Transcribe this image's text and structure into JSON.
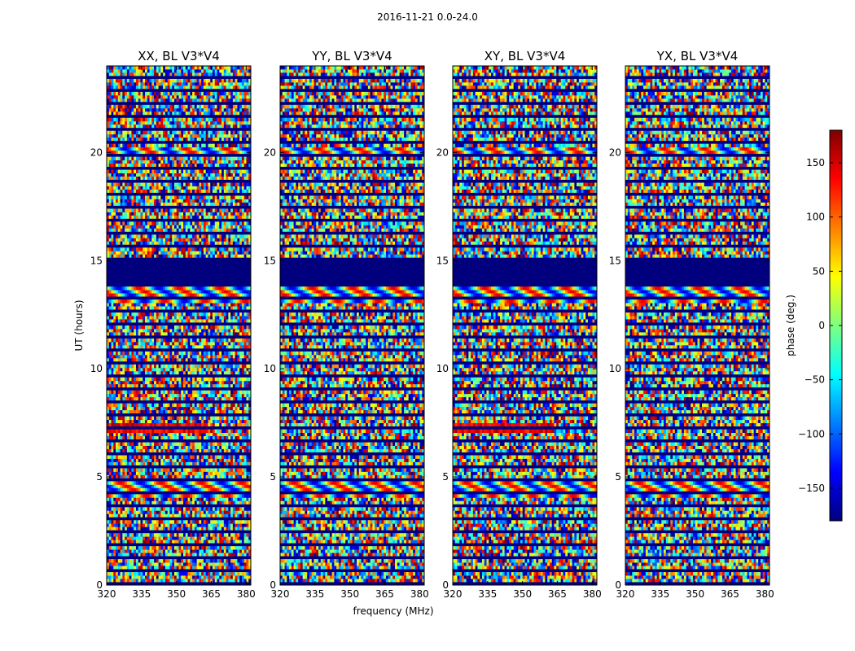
{
  "suptitle": "2016-11-21 0.0-24.0",
  "chart_data": {
    "type": "heatmap",
    "title": "2016-11-21 0.0-24.0",
    "xlabel": "frequency (MHz)",
    "ylabel": "UT (hours)",
    "xlim": [
      320,
      382
    ],
    "ylim": [
      0,
      24
    ],
    "xticks": [
      320,
      335,
      350,
      365,
      380
    ],
    "yticks": [
      0,
      5,
      10,
      15,
      20
    ],
    "colorbar": {
      "label": "phase (deg.)",
      "range": [
        -180,
        180
      ],
      "ticks": [
        150,
        100,
        50,
        0,
        -50,
        -100,
        -150
      ],
      "tick_labels": [
        "150",
        "100",
        "50",
        "0",
        "−50",
        "−100",
        "−150"
      ],
      "colormap": "jet",
      "colors": [
        "#00007f",
        "#0000ff",
        "#007fff",
        "#00ffff",
        "#7fff7f",
        "#ffff00",
        "#ff7f00",
        "#ff0000",
        "#7f0000"
      ]
    },
    "panels": [
      {
        "title": "XX, BL V3*V4"
      },
      {
        "title": "YY, BL V3*V4"
      },
      {
        "title": "XY, BL V3*V4"
      },
      {
        "title": "YX, BL V3*V4"
      }
    ]
  }
}
